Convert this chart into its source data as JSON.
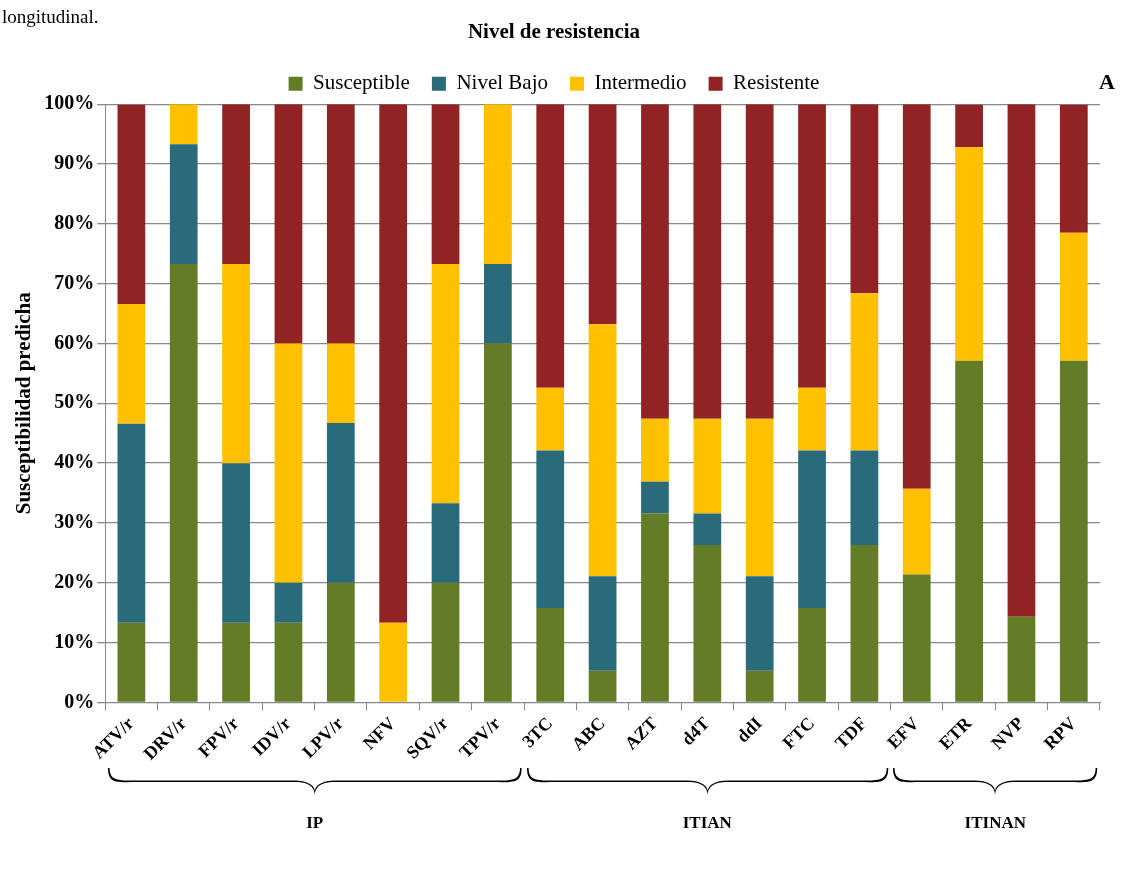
{
  "chart_data": {
    "type": "bar",
    "title": "Nivel de resistencia",
    "ylabel": "Susceptibilidad predicha",
    "categories": [
      "ATV/r",
      "DRV/r",
      "FPV/r",
      "IDV/r",
      "LPV/r",
      "NFV",
      "SQV/r",
      "TPV/r",
      "3TC",
      "ABC",
      "AZT",
      "d4T",
      "ddI",
      "FTC",
      "TDF",
      "EFV",
      "ETR",
      "NVP",
      "RPV"
    ],
    "series": [
      {
        "name": "Susceptible",
        "color": "#637d26",
        "values": [
          13.3,
          73.3,
          13.3,
          13.3,
          20,
          0,
          20,
          60,
          15.8,
          5.3,
          31.6,
          26.3,
          5.3,
          15.8,
          26.3,
          21.4,
          57.1,
          14.3,
          57.1
        ]
      },
      {
        "name": "Nivel Bajo",
        "color": "#2a6b7b",
        "values": [
          33.3,
          20,
          26.7,
          6.7,
          26.7,
          0,
          13.3,
          13.3,
          26.3,
          15.8,
          5.3,
          5.3,
          15.8,
          26.3,
          15.8,
          0,
          0,
          0,
          0
        ]
      },
      {
        "name": "Intermedio",
        "color": "#ffc000",
        "values": [
          20,
          6.7,
          33.3,
          40,
          13.3,
          13.3,
          40,
          26.7,
          10.5,
          42.1,
          10.5,
          15.8,
          26.3,
          10.5,
          26.3,
          14.3,
          35.7,
          0,
          21.4
        ]
      },
      {
        "name": "Resistente",
        "color": "#922325",
        "values": [
          33.3,
          0,
          26.7,
          40,
          40,
          86.7,
          26.7,
          0,
          47.4,
          36.8,
          52.6,
          52.6,
          52.6,
          47.4,
          31.6,
          64.3,
          7.1,
          85.7,
          21.4
        ]
      }
    ],
    "stacked": true,
    "ylim": [
      0,
      100
    ],
    "yticks": [
      {
        "value": 0,
        "label": "0%"
      },
      {
        "value": 10,
        "label": "10%"
      },
      {
        "value": 20,
        "label": "20%"
      },
      {
        "value": 30,
        "label": "30%"
      },
      {
        "value": 40,
        "label": "40%"
      },
      {
        "value": 50,
        "label": "50%"
      },
      {
        "value": 60,
        "label": "60%"
      },
      {
        "value": 70,
        "label": "70%"
      },
      {
        "value": 80,
        "label": "80%"
      },
      {
        "value": 90,
        "label": "90%"
      },
      {
        "value": 100,
        "label": "100%"
      }
    ],
    "grid": "y",
    "legend": "top",
    "annotations": [
      "A",
      "longitudinal.",
      "IP",
      "ITIAN",
      "ITINAN"
    ]
  }
}
